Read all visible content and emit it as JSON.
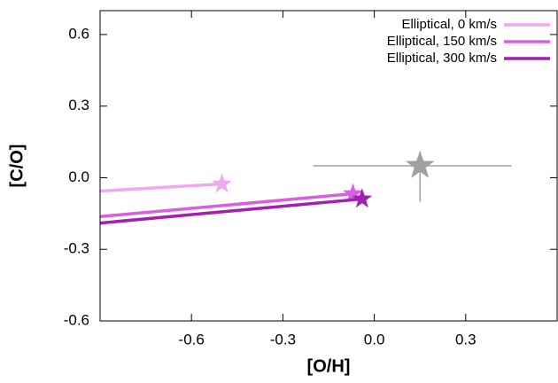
{
  "chart_data": {
    "type": "line",
    "xlabel": "[O/H]",
    "ylabel": "[C/O]",
    "xlim": [
      -0.9,
      0.6
    ],
    "ylim": [
      -0.6,
      0.7
    ],
    "xticks": [
      -0.6,
      -0.3,
      {
        "value": 0,
        "label": "0.0"
      },
      0.3
    ],
    "yticks": [
      -0.6,
      -0.3,
      {
        "value": 0,
        "label": "0.0"
      },
      0.3,
      0.6
    ],
    "legend": "upper right",
    "series": [
      {
        "name": "Elliptical, 0 km/s",
        "color": "#f0a8f0",
        "x": [
          -0.9,
          -0.5
        ],
        "values": [
          -0.056,
          -0.026
        ]
      },
      {
        "name": "Elliptical, 150 km/s",
        "color": "#d860e0",
        "x": [
          -0.9,
          -0.07
        ],
        "values": [
          -0.163,
          -0.067
        ]
      },
      {
        "name": "Elliptical, 300 km/s",
        "color": "#a020b0",
        "x": [
          -0.9,
          -0.04
        ],
        "values": [
          -0.19,
          -0.089
        ]
      }
    ],
    "observation": {
      "color": "#a0a0a0",
      "x": 0.15,
      "y": 0.05,
      "xerr": [
        0.35,
        0.3
      ],
      "yerr": [
        0.15,
        0.06
      ]
    }
  }
}
